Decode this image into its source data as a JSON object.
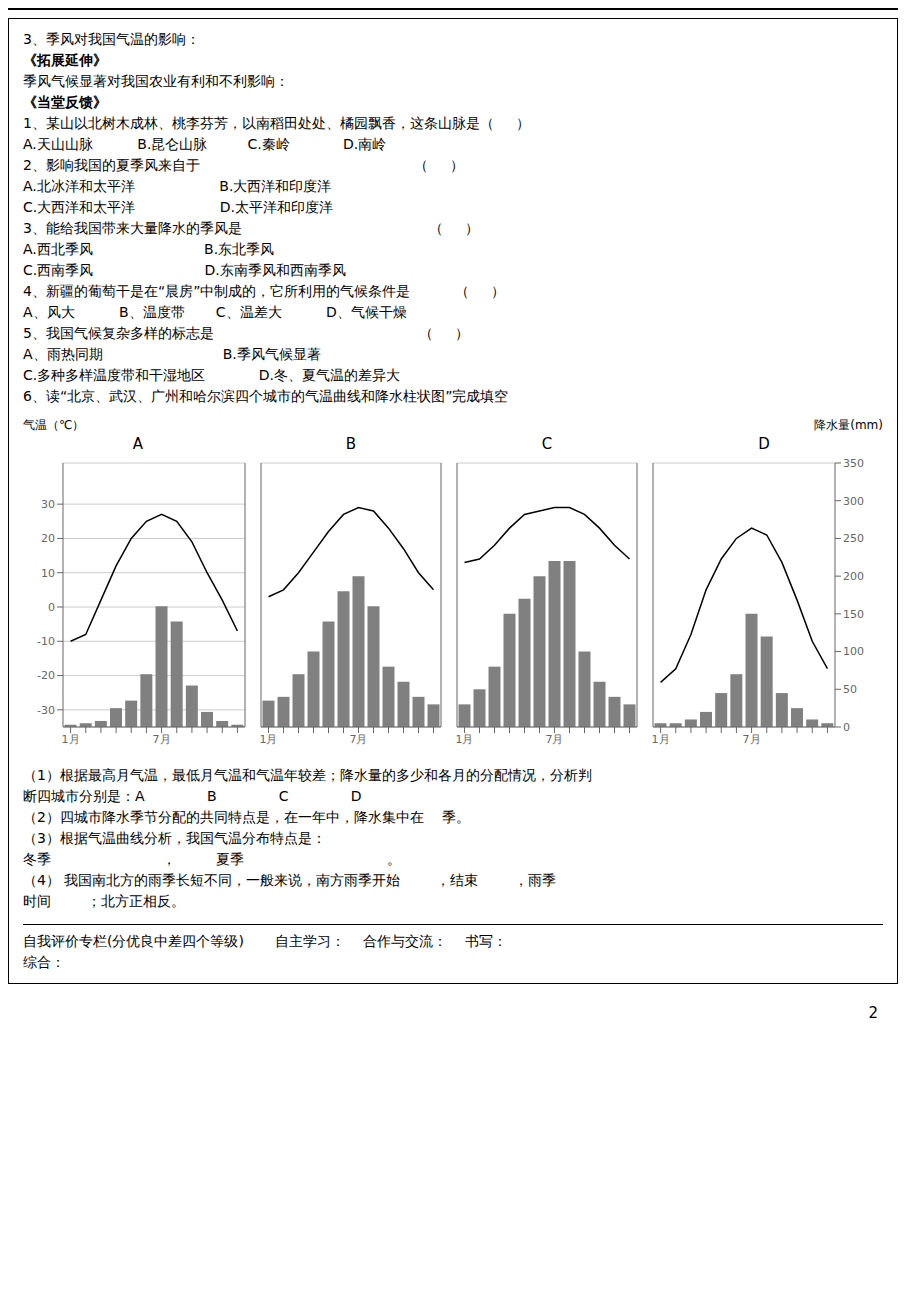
{
  "annotations": [
    "3、季风对我国气温的影响：",
    "《拓展延伸》",
    "季风气候显著对我国农业有利和不利影响：",
    "《当堂反馈》",
    "1、某山以北树木成林、桃李芬芳，以南稻田处处、橘园飘香，这条山脉是（     ）",
    "A.天山山脉          B.昆仑山脉         C.秦岭            D.南岭",
    "2、影响我国的夏季风来自于                                                （     ）",
    "A.北冰洋和太平洋                   B.大西洋和印度洋",
    "C.大西洋和太平洋                   D.太平洋和印度洋",
    "3、能给我国带来大量降水的季风是                                          （     ）",
    "A.西北季风                         B.东北季风",
    "C.西南季风                         D.东南季风和西南季风",
    "4、新疆的葡萄干是在“晨房”中制成的，它所利用的气候条件是          （     ）",
    "A、风大          B、温度带       C、温差大          D、气候干燥",
    "5、我国气候复杂多样的标志是                                              （     ）",
    "A、雨热同期                           B.季风气候显著",
    "C.多种多样温度带和干湿地区            D.冬、夏气温的差异大",
    "6、读“北京、武汉、广州和哈尔滨四个城市的气温曲线和降水柱状图”完成填空",
    "（1）根据最高月气温，最低月气温和气温年较差；降水量的多少和各月的分配情况，分析判",
    "断四城市分别是：A              B              C              D           ",
    "（2）四城市降水季节分配的共同特点是，在一年中，降水集中在    季。",
    "（3）根据气温曲线分析，我国气温分布特点是：",
    "冬季                         ，         夏季                                。",
    "（4） 我国南北方的雨季长短不同，一般来说，南方雨季开始        ，结束        ，雨季",
    "时间        ；北方正相反。",
    "自我评价专栏(分优良中差四个等级)       自主学习：    合作与交流：    书写：",
    "综合：",
    "2"
  ],
  "chart_data": [
    {
      "type": "bar",
      "title": "A",
      "ylabel": "气温（℃）",
      "categories": [
        "1月",
        null,
        null,
        null,
        null,
        null,
        "7月",
        null,
        null,
        null,
        null,
        null
      ],
      "series": [
        {
          "type": "bar",
          "color": "#808080",
          "axis": "y2",
          "values": [
            3,
            5,
            8,
            25,
            35,
            70,
            160,
            140,
            55,
            20,
            8,
            3
          ]
        },
        {
          "type": "line",
          "color": "#000000",
          "values": [
            -10,
            -8,
            2,
            12,
            20,
            25,
            27,
            25,
            19,
            10,
            2,
            -7
          ]
        }
      ],
      "ylim": [
        -35,
        42
      ],
      "yticks": [
        -30,
        -20,
        -10,
        0,
        10,
        20,
        30
      ],
      "y2lim": [
        0,
        350
      ],
      "grid": true
    },
    {
      "type": "bar",
      "title": "B",
      "categories": [
        "1月",
        null,
        null,
        null,
        null,
        null,
        "7月",
        null,
        null,
        null,
        null,
        null
      ],
      "series": [
        {
          "type": "bar",
          "color": "#808080",
          "axis": "y2",
          "values": [
            35,
            40,
            70,
            100,
            140,
            180,
            200,
            160,
            80,
            60,
            40,
            30
          ]
        },
        {
          "type": "line",
          "color": "#000000",
          "values": [
            3,
            5,
            10,
            16,
            22,
            27,
            29,
            28,
            23,
            17,
            10,
            5
          ]
        }
      ],
      "ylim": [
        -35,
        42
      ],
      "yticks": [
        -30,
        -20,
        -10,
        0,
        10,
        20,
        30
      ],
      "y2lim": [
        0,
        350
      ],
      "grid": true,
      "tick_labels": "x"
    },
    {
      "type": "bar",
      "title": "C",
      "categories": [
        "1月",
        null,
        null,
        null,
        null,
        null,
        "7月",
        null,
        null,
        null,
        null,
        null
      ],
      "series": [
        {
          "type": "bar",
          "color": "#808080",
          "axis": "y2",
          "values": [
            30,
            50,
            80,
            150,
            170,
            200,
            220,
            220,
            100,
            60,
            40,
            30
          ]
        },
        {
          "type": "line",
          "color": "#000000",
          "values": [
            13,
            14,
            18,
            23,
            27,
            28,
            29,
            29,
            27,
            23,
            18,
            14
          ]
        }
      ],
      "ylim": [
        -35,
        42
      ],
      "yticks": [
        -30,
        -20,
        -10,
        0,
        10,
        20,
        30
      ],
      "y2lim": [
        0,
        350
      ],
      "grid": true,
      "tick_labels": "x"
    },
    {
      "type": "bar",
      "title": "D",
      "y2label": "降水量(mm)",
      "categories": [
        "1月",
        null,
        null,
        null,
        null,
        null,
        "7月",
        null,
        null,
        null,
        null,
        null
      ],
      "series": [
        {
          "type": "bar",
          "color": "#808080",
          "axis": "y2",
          "values": [
            5,
            5,
            10,
            20,
            45,
            70,
            150,
            120,
            45,
            25,
            10,
            5
          ]
        },
        {
          "type": "line",
          "color": "#000000",
          "values": [
            -22,
            -18,
            -8,
            5,
            14,
            20,
            23,
            21,
            13,
            2,
            -10,
            -18
          ]
        }
      ],
      "ylim": [
        -35,
        42
      ],
      "yticks": [
        -30,
        -20,
        -10,
        0,
        10,
        20,
        30
      ],
      "y2lim": [
        0,
        350
      ],
      "y2ticks": [
        0,
        50,
        100,
        150,
        200,
        250,
        300,
        350
      ],
      "grid": true,
      "tick_labels": "x"
    }
  ]
}
